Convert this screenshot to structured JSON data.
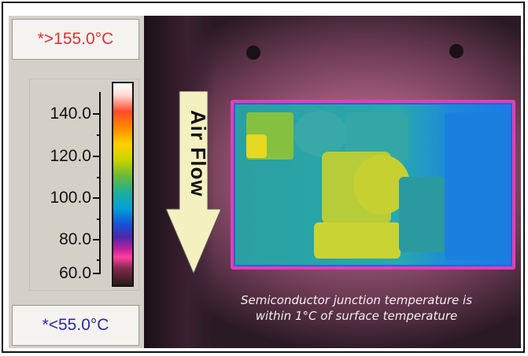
{
  "scale": {
    "max_reading": "*>155.0°C",
    "min_reading": "*<55.0°C",
    "ticks": [
      "140.0",
      "120.0",
      "100.0",
      "80.0",
      "60.0"
    ],
    "palette_colors": [
      "#ffffff",
      "#ff4a2a",
      "#ffd000",
      "#6ab83a",
      "#00a0d8",
      "#4a2aa8",
      "#ff40a0",
      "#2a1a1a"
    ]
  },
  "thermal_image": {
    "arrow_label": "Air Flow",
    "arrow_color": "#f4f0c0",
    "caption_line1": "Semiconductor junction temperature is",
    "caption_line2": "within 1°C of surface temperature"
  }
}
